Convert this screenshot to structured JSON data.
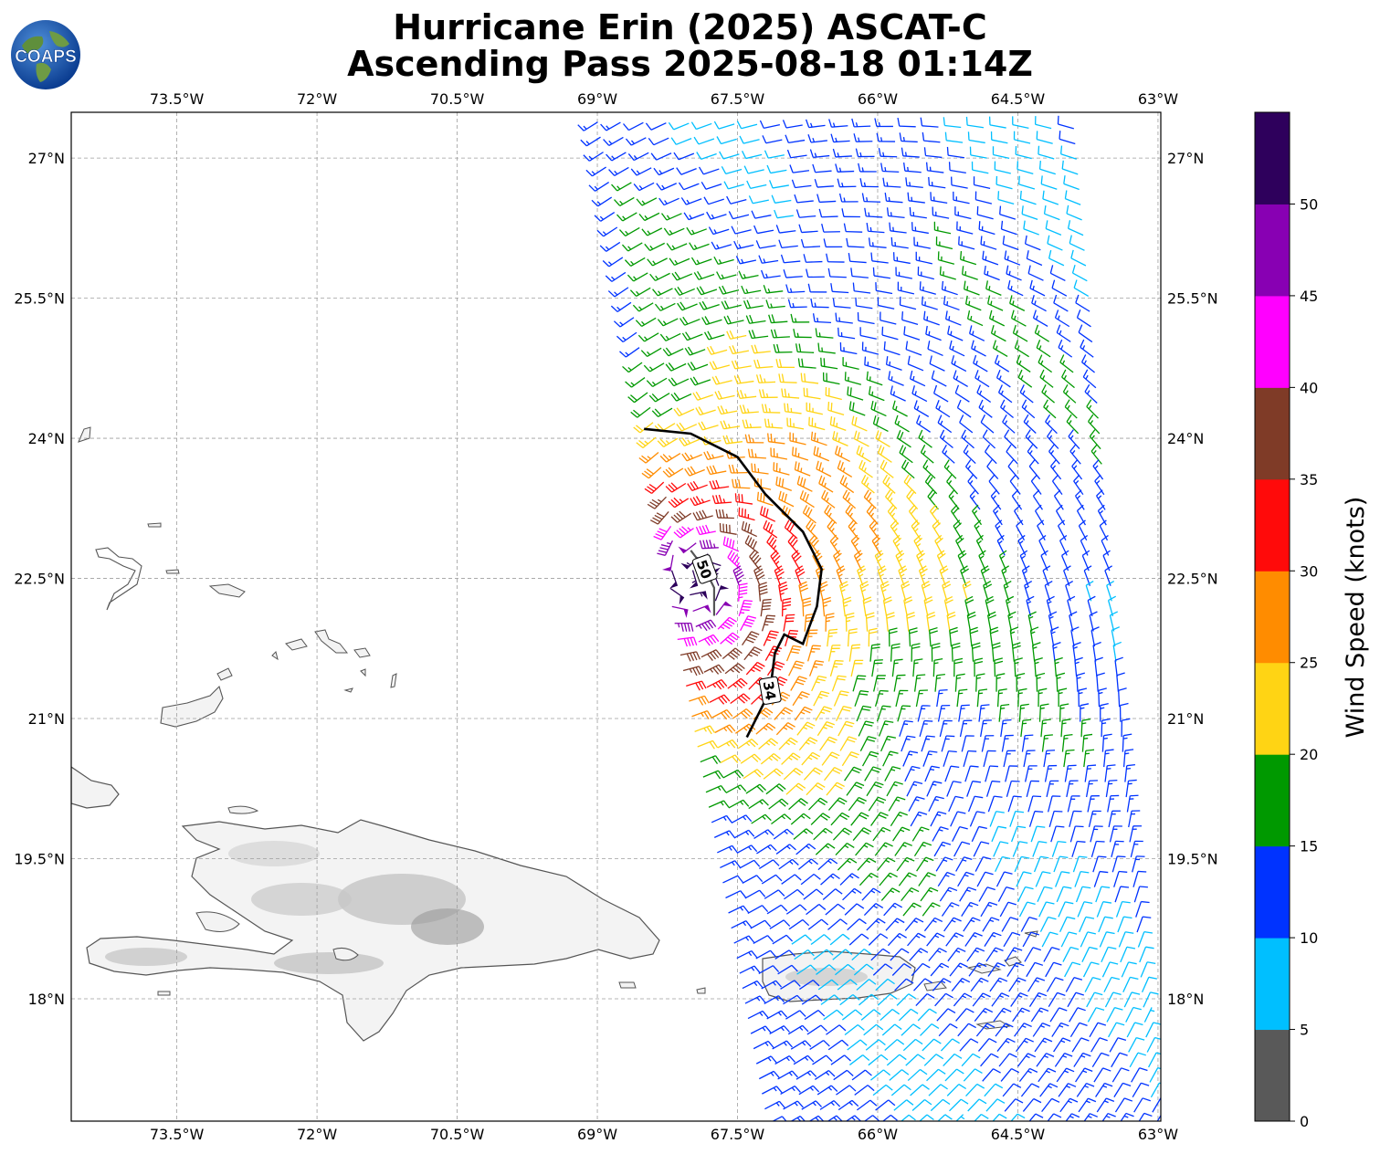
{
  "title_line1": "Hurricane Erin (2025) ASCAT-C",
  "title_line2": "Ascending Pass 2025-08-18 01:14Z",
  "logo_text": "COAPS",
  "lon_labels": [
    "73.5°W",
    "72°W",
    "70.5°W",
    "69°W",
    "67.5°W",
    "66°W",
    "64.5°W",
    "63°W"
  ],
  "lat_labels": [
    "27°N",
    "25.5°N",
    "24°N",
    "22.5°N",
    "21°N",
    "19.5°N",
    "18°N"
  ],
  "extent": {
    "lon_min": -74.63,
    "lon_max": -62.97,
    "lat_min": 16.69,
    "lat_max": 27.49
  },
  "colorbar": {
    "label": "Wind Speed (knots)",
    "ticks": [
      "0",
      "5",
      "10",
      "15",
      "20",
      "25",
      "30",
      "35",
      "40",
      "45",
      "50"
    ],
    "bins": [
      {
        "min": 0,
        "max": 5,
        "color": "#595959"
      },
      {
        "min": 5,
        "max": 10,
        "color": "#00bfff"
      },
      {
        "min": 10,
        "max": 15,
        "color": "#0033ff"
      },
      {
        "min": 15,
        "max": 20,
        "color": "#009900"
      },
      {
        "min": 20,
        "max": 25,
        "color": "#ffd414"
      },
      {
        "min": 25,
        "max": 30,
        "color": "#ff8c00"
      },
      {
        "min": 30,
        "max": 35,
        "color": "#ff0a0a"
      },
      {
        "min": 35,
        "max": 40,
        "color": "#7f3b27"
      },
      {
        "min": 40,
        "max": 45,
        "color": "#ff00ff"
      },
      {
        "min": 45,
        "max": 50,
        "color": "#8800b3"
      },
      {
        "min": 50,
        "max": 55,
        "color": "#2e005c"
      }
    ]
  },
  "contours": [
    {
      "label": "34",
      "points": [
        [
          -68.5,
          24.1
        ],
        [
          -68.0,
          24.05
        ],
        [
          -67.5,
          23.8
        ],
        [
          -67.2,
          23.4
        ],
        [
          -66.8,
          23.0
        ],
        [
          -66.6,
          22.6
        ],
        [
          -66.65,
          22.2
        ],
        [
          -66.8,
          21.8
        ],
        [
          -67.0,
          21.9
        ],
        [
          -67.1,
          21.7
        ],
        [
          -67.15,
          21.3
        ],
        [
          -67.3,
          21.0
        ],
        [
          -67.4,
          20.8
        ]
      ]
    },
    {
      "label": "50",
      "points": [
        [
          -68.0,
          22.8
        ],
        [
          -67.85,
          22.6
        ],
        [
          -67.75,
          22.4
        ],
        [
          -67.75,
          22.1
        ]
      ]
    }
  ],
  "swath": {
    "top_left": [
      -69.1,
      27.5
    ],
    "top_right": [
      -64.0,
      27.5
    ],
    "bottom_left": [
      -67.1,
      16.7
    ],
    "bottom_right": [
      -63.0,
      16.7
    ]
  },
  "storm_center": [
    -67.9,
    22.5
  ]
}
